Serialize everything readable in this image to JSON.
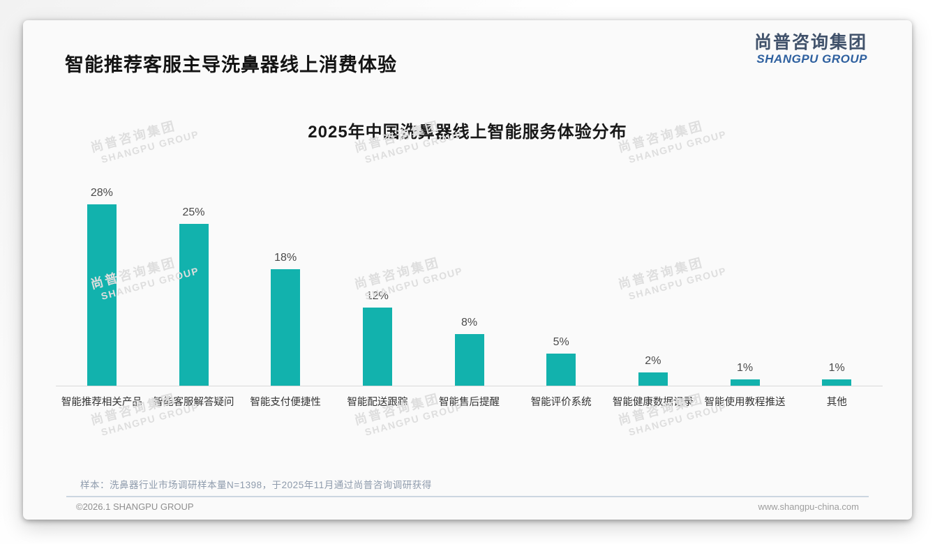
{
  "page": {
    "title": "智能推荐客服主导洗鼻器线上消费体验",
    "logo": {
      "cn": "尚普咨询集团",
      "en": "SHANGPU GROUP"
    },
    "watermark": {
      "cn": "尚普咨询集团",
      "en": "SHANGPU GROUP"
    },
    "note": "样本：洗鼻器行业市场调研样本量N=1398，于2025年11月通过尚普咨询调研获得",
    "footer": {
      "left": "©2026.1 SHANGPU GROUP",
      "right": "www.shangpu-china.com"
    }
  },
  "chart_data": {
    "type": "bar",
    "title": "2025年中国洗鼻器线上智能服务体验分布",
    "categories": [
      "智能推荐相关产品",
      "智能客服解答疑问",
      "智能支付便捷性",
      "智能配送跟踪",
      "智能售后提醒",
      "智能评价系统",
      "智能健康数据记录",
      "智能使用教程推送",
      "其他"
    ],
    "values": [
      28,
      25,
      18,
      12,
      8,
      5,
      2,
      1,
      1
    ],
    "data_labels": [
      "28%",
      "25%",
      "18%",
      "12%",
      "8%",
      "5%",
      "2%",
      "1%",
      "1%"
    ],
    "unit": "%",
    "bar_color": "#12b2ad",
    "value_label_color": "#4a4a4a",
    "ylim": [
      0,
      30
    ],
    "grid": false,
    "legend": "none",
    "xlabel": "",
    "ylabel": ""
  }
}
